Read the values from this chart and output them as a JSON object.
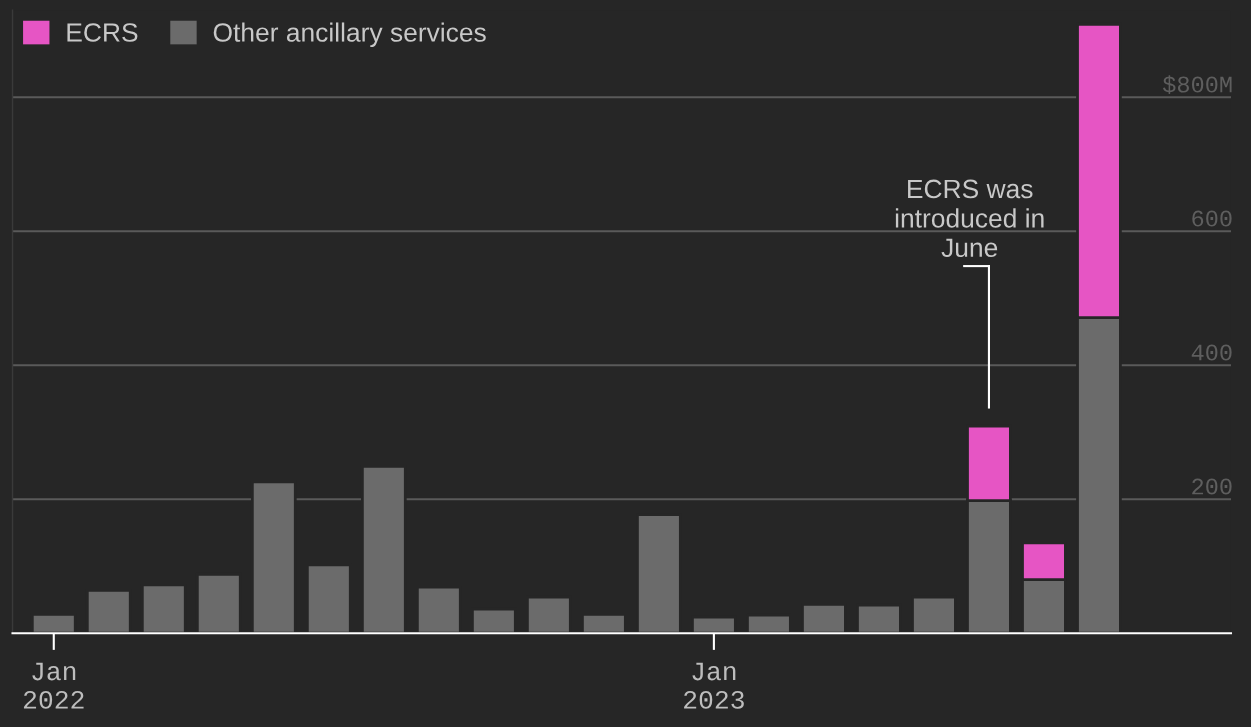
{
  "chart_data": {
    "type": "bar",
    "stacked": true,
    "categories": [
      "Jan\n2022",
      null,
      null,
      null,
      null,
      null,
      null,
      null,
      null,
      null,
      null,
      null,
      "Jan\n2023",
      null,
      null,
      null,
      null,
      null,
      null,
      null
    ],
    "series": [
      {
        "name": "Other ancillary services",
        "color": "#6b6b6b",
        "values": [
          28,
          64,
          72,
          88,
          226,
          102,
          249,
          69,
          36,
          54,
          28,
          177,
          24,
          27,
          43,
          42,
          54,
          198,
          80,
          471
        ]
      },
      {
        "name": "ECRS",
        "color": "#e655c4",
        "values": [
          null,
          null,
          null,
          null,
          null,
          null,
          null,
          null,
          null,
          null,
          null,
          null,
          null,
          null,
          null,
          null,
          null,
          111,
          55,
          438
        ]
      }
    ],
    "ylim": [
      0,
      930
    ],
    "yticks": [
      200,
      400,
      600,
      {
        "value": 800,
        "label": "$800M"
      }
    ],
    "grid": "y",
    "legend": "top left",
    "annotations": [
      "ECRS was\nintroduced in\nJune"
    ]
  }
}
